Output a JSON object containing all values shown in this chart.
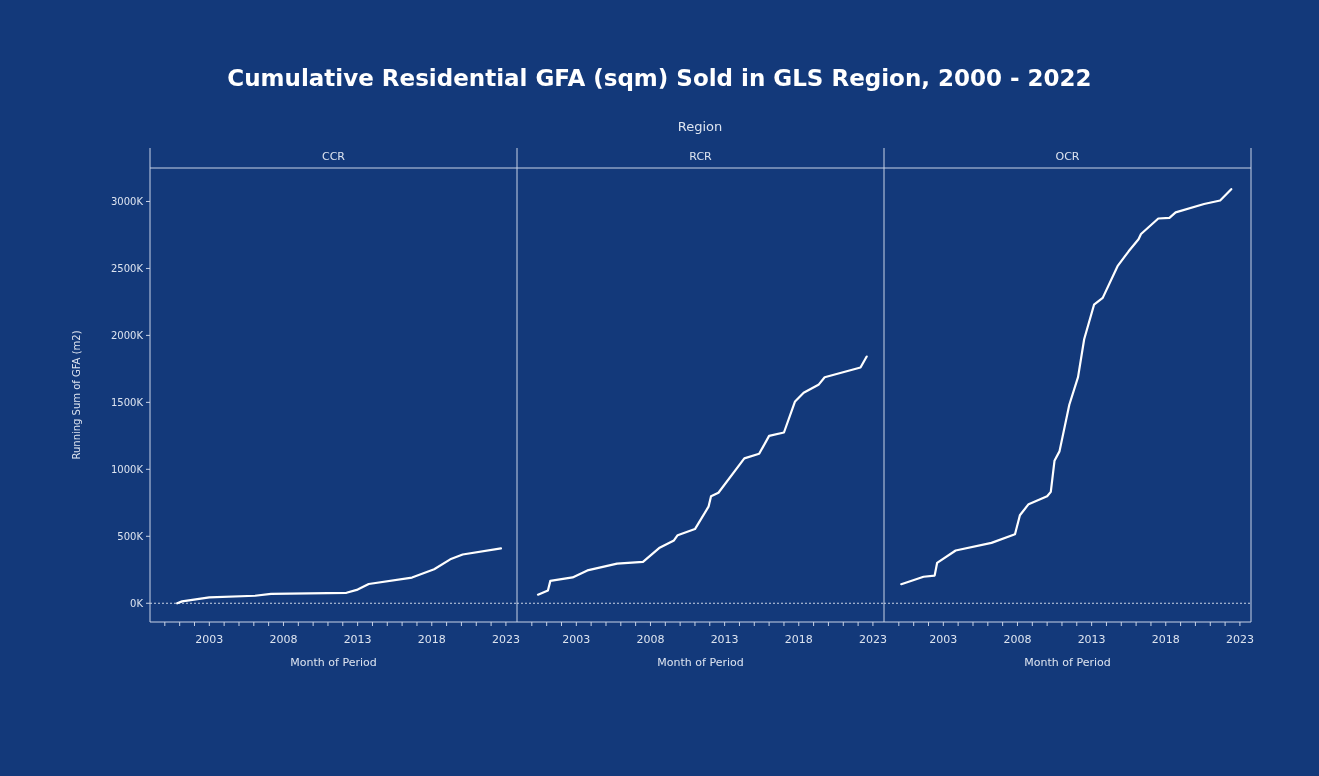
{
  "chart_data": [
    {
      "type": "other",
      "title": "Cumulative Residential GFA (sqm) Sold in GLS Region, 2000 - 2022",
      "subtitle": "Region"
    },
    {
      "type": "line",
      "title": "CCR",
      "xlabel": "Month of Period",
      "ylabel": "Running Sum of GFA (m2)",
      "series": [
        {
          "color": "#ffffff",
          "x": [
            "2000-11",
            "2001-03",
            "2003-01",
            "2006-02",
            "2007-03",
            "2012-04",
            "2013-01",
            "2013-10",
            "2016-09",
            "2018-03",
            "2019-04",
            "2020-02",
            "2022-09"
          ],
          "values": [
            0,
            14000,
            44000,
            56000,
            70000,
            78000,
            102000,
            144000,
            192000,
            254000,
            328000,
            364000,
            410000
          ]
        }
      ],
      "xlim": [
        "1999-01",
        "2023-10"
      ],
      "ylim": [
        -140000,
        3250000
      ],
      "xticks": [
        {
          "value": "2000",
          "label": null
        },
        {
          "value": "2001",
          "label": null
        },
        {
          "value": "2002",
          "label": null
        },
        {
          "value": "2003",
          "label": "2003"
        },
        {
          "value": "2004",
          "label": null
        },
        {
          "value": "2005",
          "label": null
        },
        {
          "value": "2006",
          "label": null
        },
        {
          "value": "2007",
          "label": null
        },
        {
          "value": "2008",
          "label": "2008"
        },
        {
          "value": "2009",
          "label": null
        },
        {
          "value": "2010",
          "label": null
        },
        {
          "value": "2011",
          "label": null
        },
        {
          "value": "2012",
          "label": null
        },
        {
          "value": "2013",
          "label": "2013"
        },
        {
          "value": "2014",
          "label": null
        },
        {
          "value": "2015",
          "label": null
        },
        {
          "value": "2016",
          "label": null
        },
        {
          "value": "2017",
          "label": null
        },
        {
          "value": "2018",
          "label": "2018"
        },
        {
          "value": "2019",
          "label": null
        },
        {
          "value": "2020",
          "label": null
        },
        {
          "value": "2021",
          "label": null
        },
        {
          "value": "2022",
          "label": null
        },
        {
          "value": "2023",
          "label": "2023"
        }
      ],
      "yticks": [
        {
          "value": 0,
          "label": "0K"
        },
        {
          "value": 500000,
          "label": "500K"
        },
        {
          "value": 1000000,
          "label": "1000K"
        },
        {
          "value": 1500000,
          "label": "1500K"
        },
        {
          "value": 2000000,
          "label": "2000K"
        },
        {
          "value": 2500000,
          "label": "2500K"
        },
        {
          "value": 3000000,
          "label": "3000K"
        }
      ],
      "ref_lines": [
        {
          "axis": "y",
          "value": 0,
          "line_style": "dotted",
          "color": "#c9d3e6"
        }
      ]
    },
    {
      "type": "line",
      "title": "RCR",
      "xlabel": "Month of Period",
      "tick_labels": "x",
      "series": [
        {
          "color": "#ffffff",
          "x": [
            "2000-06",
            "2001-02",
            "2001-04",
            "2002-10",
            "2003-10",
            "2005-10",
            "2007-07",
            "2008-08",
            "2009-08",
            "2009-11",
            "2011-01",
            "2011-12",
            "2012-02",
            "2012-08",
            "2014-05",
            "2015-05",
            "2016-01",
            "2017-01",
            "2017-10",
            "2018-05",
            "2019-05",
            "2019-10",
            "2022-03",
            "2022-08"
          ],
          "values": [
            64000,
            95000,
            167000,
            193000,
            245000,
            296000,
            309000,
            412000,
            469000,
            508000,
            554000,
            721000,
            799000,
            825000,
            1082000,
            1116000,
            1250000,
            1275000,
            1507000,
            1572000,
            1631000,
            1688000,
            1760000,
            1842000
          ]
        }
      ],
      "xlim": [
        "1999-01",
        "2023-10"
      ],
      "ylim": [
        -140000,
        3250000
      ],
      "xticks": [
        {
          "value": "2000",
          "label": null
        },
        {
          "value": "2001",
          "label": null
        },
        {
          "value": "2002",
          "label": null
        },
        {
          "value": "2003",
          "label": "2003"
        },
        {
          "value": "2004",
          "label": null
        },
        {
          "value": "2005",
          "label": null
        },
        {
          "value": "2006",
          "label": null
        },
        {
          "value": "2007",
          "label": null
        },
        {
          "value": "2008",
          "label": "2008"
        },
        {
          "value": "2009",
          "label": null
        },
        {
          "value": "2010",
          "label": null
        },
        {
          "value": "2011",
          "label": null
        },
        {
          "value": "2012",
          "label": null
        },
        {
          "value": "2013",
          "label": "2013"
        },
        {
          "value": "2014",
          "label": null
        },
        {
          "value": "2015",
          "label": null
        },
        {
          "value": "2016",
          "label": null
        },
        {
          "value": "2017",
          "label": null
        },
        {
          "value": "2018",
          "label": "2018"
        },
        {
          "value": "2019",
          "label": null
        },
        {
          "value": "2020",
          "label": null
        },
        {
          "value": "2021",
          "label": null
        },
        {
          "value": "2022",
          "label": null
        },
        {
          "value": "2023",
          "label": "2023"
        }
      ],
      "ref_lines": [
        {
          "axis": "y",
          "value": 0,
          "line_style": "dotted",
          "color": "#c9d3e6"
        }
      ]
    },
    {
      "type": "line",
      "title": "OCR",
      "xlabel": "Month of Period",
      "tick_labels": "x",
      "series": [
        {
          "color": "#ffffff",
          "x": [
            "2000-03",
            "2001-09",
            "2002-06",
            "2002-08",
            "2003-11",
            "2006-04",
            "2007-11",
            "2008-03",
            "2008-10",
            "2010-01",
            "2010-04",
            "2010-07",
            "2010-11",
            "2011-07",
            "2012-02",
            "2012-07",
            "2013-03",
            "2013-10",
            "2014-10",
            "2015-07",
            "2016-03",
            "2016-05",
            "2017-07",
            "2018-04",
            "2018-09",
            "2020-08",
            "2021-09",
            "2022-06"
          ],
          "values": [
            142000,
            198000,
            206000,
            301000,
            394000,
            451000,
            515000,
            657000,
            740000,
            799000,
            832000,
            1064000,
            1134000,
            1482000,
            1688000,
            1971000,
            2229000,
            2280000,
            2517000,
            2628000,
            2718000,
            2757000,
            2873000,
            2878000,
            2919000,
            2981000,
            3007000,
            3092000
          ]
        }
      ],
      "xlim": [
        "1999-01",
        "2023-10"
      ],
      "ylim": [
        -140000,
        3250000
      ],
      "xticks": [
        {
          "value": "2000",
          "label": null
        },
        {
          "value": "2001",
          "label": null
        },
        {
          "value": "2002",
          "label": null
        },
        {
          "value": "2003",
          "label": "2003"
        },
        {
          "value": "2004",
          "label": null
        },
        {
          "value": "2005",
          "label": null
        },
        {
          "value": "2006",
          "label": null
        },
        {
          "value": "2007",
          "label": null
        },
        {
          "value": "2008",
          "label": "2008"
        },
        {
          "value": "2009",
          "label": null
        },
        {
          "value": "2010",
          "label": null
        },
        {
          "value": "2011",
          "label": null
        },
        {
          "value": "2012",
          "label": null
        },
        {
          "value": "2013",
          "label": "2013"
        },
        {
          "value": "2014",
          "label": null
        },
        {
          "value": "2015",
          "label": null
        },
        {
          "value": "2016",
          "label": null
        },
        {
          "value": "2017",
          "label": null
        },
        {
          "value": "2018",
          "label": "2018"
        },
        {
          "value": "2019",
          "label": null
        },
        {
          "value": "2020",
          "label": null
        },
        {
          "value": "2021",
          "label": null
        },
        {
          "value": "2022",
          "label": null
        },
        {
          "value": "2023",
          "label": "2023"
        }
      ],
      "ref_lines": [
        {
          "axis": "y",
          "value": 0,
          "line_style": "dotted",
          "color": "#c9d3e6"
        }
      ]
    }
  ]
}
